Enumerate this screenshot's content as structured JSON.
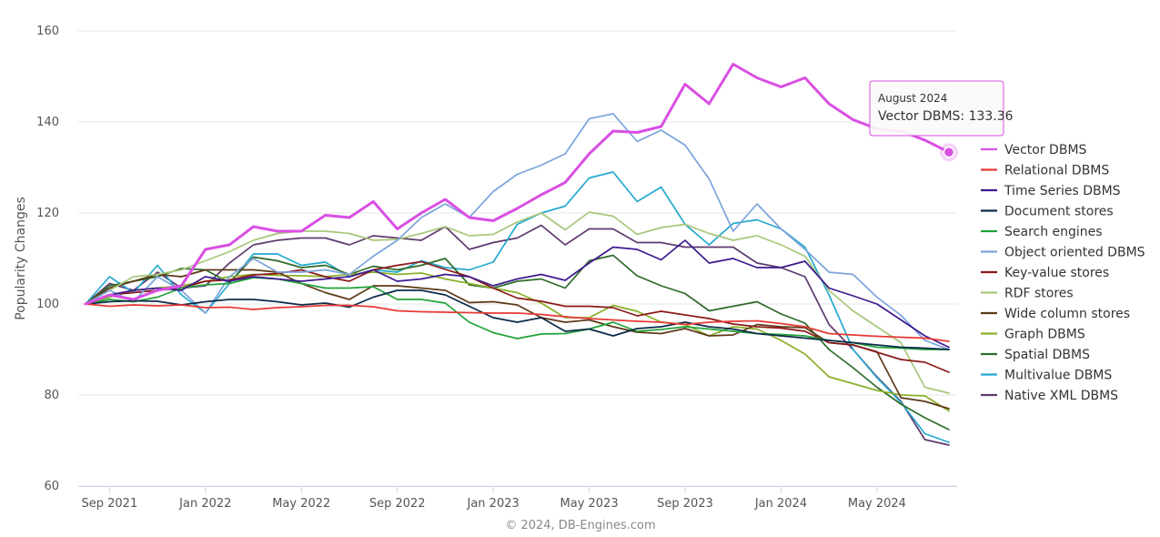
{
  "chart_data": {
    "type": "line",
    "title": "",
    "xlabel": "",
    "ylabel": "Popularity Changes",
    "ylim": [
      60,
      160
    ],
    "yticks": [
      60,
      80,
      100,
      120,
      140,
      160
    ],
    "x_start": "2021-08",
    "x_end": "2024-08",
    "xticks": [
      {
        "label": "Sep 2021",
        "date": "2021-09"
      },
      {
        "label": "Jan 2022",
        "date": "2022-01"
      },
      {
        "label": "May 2022",
        "date": "2022-05"
      },
      {
        "label": "Sep 2022",
        "date": "2022-09"
      },
      {
        "label": "Jan 2023",
        "date": "2023-01"
      },
      {
        "label": "May 2023",
        "date": "2023-05"
      },
      {
        "label": "Sep 2023",
        "date": "2023-09"
      },
      {
        "label": "Jan 2024",
        "date": "2024-01"
      },
      {
        "label": "May 2024",
        "date": "2024-05"
      }
    ],
    "grid": true,
    "legend_position": "right",
    "credits": "© 2024, DB-Engines.com",
    "tooltip": {
      "date": "August 2024",
      "series": "Vector DBMS",
      "value": "133.36",
      "value_text": "Vector DBMS: 133.36"
    },
    "series": [
      {
        "name": "Vector DBMS",
        "color": "#d94fe3",
        "width": 3,
        "values": [
          100,
          102,
          101,
          103,
          104,
          112,
          113,
          117,
          116,
          116,
          119.5,
          119,
          122.5,
          116.5,
          120,
          123,
          119,
          118.3,
          121,
          124,
          126.7,
          133,
          138,
          137.7,
          139,
          148.3,
          144,
          152.7,
          149.7,
          147.7,
          149.7,
          144,
          140.5,
          138.5,
          138,
          136,
          133.36
        ]
      },
      {
        "name": "Relational DBMS",
        "color": "#e53935",
        "width": 1.7,
        "values": [
          100,
          99.5,
          99.8,
          99.6,
          99.8,
          99.2,
          99.3,
          98.8,
          99.2,
          99.4,
          99.7,
          99.7,
          99.4,
          98.5,
          98.3,
          98.2,
          98.1,
          98,
          98,
          97.7,
          97.2,
          96.8,
          96.5,
          96.2,
          96,
          95.5,
          96,
          96.2,
          96.3,
          95.7,
          95,
          93.5,
          93.2,
          92.9,
          92.7,
          92.5,
          91.8
        ]
      },
      {
        "name": "Time Series DBMS",
        "color": "#3f1a8f",
        "width": 1.7,
        "values": [
          100,
          102,
          103,
          103.5,
          103,
          106,
          105,
          106,
          105.5,
          105,
          105.5,
          106,
          107.5,
          105,
          105.5,
          106.5,
          106,
          104,
          105.5,
          106.5,
          105.2,
          109,
          112.5,
          112,
          109.7,
          114,
          109,
          110,
          108,
          108,
          109.4,
          103.5,
          101.8,
          100,
          96.5,
          93,
          90.5
        ]
      },
      {
        "name": "Document stores",
        "color": "#0d2b4a",
        "width": 1.7,
        "values": [
          100,
          100.5,
          100.7,
          100.6,
          99.8,
          100.5,
          101,
          101,
          100.5,
          99.8,
          100.2,
          99.3,
          101.5,
          103,
          103,
          102,
          99.5,
          97,
          96,
          97,
          94,
          94.5,
          93,
          94.6,
          95,
          96,
          95,
          94.5,
          93.5,
          93,
          92.5,
          92,
          91.5,
          91,
          90.5,
          90.3,
          90
        ]
      },
      {
        "name": "Search engines",
        "color": "#21a33a",
        "width": 1.7,
        "values": [
          100,
          101,
          100.5,
          101.5,
          103.5,
          104.2,
          104.5,
          105.8,
          105.5,
          104.5,
          103.5,
          103.5,
          103.8,
          101,
          101,
          100.2,
          96,
          93.7,
          92.4,
          93.4,
          93.5,
          94.5,
          96,
          94,
          94.4,
          95,
          94.5,
          94,
          93.5,
          93.3,
          93,
          92,
          91.5,
          90.5,
          90.3,
          90,
          90
        ]
      },
      {
        "name": "Object oriented DBMS",
        "color": "#7ba4dc",
        "width": 1.7,
        "values": [
          100,
          103,
          100.5,
          106,
          103,
          98,
          106,
          110,
          107,
          107,
          107.5,
          106.5,
          110.5,
          114,
          119,
          122,
          119,
          124.7,
          128.5,
          130.5,
          133,
          140.7,
          141.8,
          135.7,
          138.2,
          134.9,
          127.5,
          116,
          122,
          116.5,
          112,
          107,
          106.5,
          101.5,
          97.5,
          92,
          90
        ]
      },
      {
        "name": "Key-value stores",
        "color": "#8b1a1a",
        "width": 1.7,
        "values": [
          100,
          102,
          102.5,
          103,
          103.5,
          105,
          105.3,
          106.4,
          106.7,
          107.5,
          106,
          105,
          107.5,
          108.5,
          109.3,
          107.6,
          106,
          103.5,
          101.3,
          100.6,
          99.5,
          99.5,
          99.2,
          97.4,
          98.4,
          97.6,
          96.8,
          95.6,
          95,
          94.7,
          94,
          91.5,
          91,
          89.4,
          87.8,
          87.2,
          85
        ]
      },
      {
        "name": "RDF stores",
        "color": "#a8c77a",
        "width": 1.7,
        "values": [
          100,
          103,
          106,
          106.5,
          107.5,
          109.5,
          111.5,
          114,
          115.5,
          116,
          116,
          115.5,
          114,
          114.2,
          115.5,
          117,
          115,
          115.3,
          118,
          120,
          116.3,
          120.2,
          119.3,
          115.3,
          116.8,
          117.5,
          115.5,
          114,
          115,
          113,
          110.5,
          103,
          98.5,
          95,
          91.5,
          81.7,
          80.4
        ]
      },
      {
        "name": "Wide column stores",
        "color": "#5d3a17",
        "width": 1.7,
        "values": [
          100,
          103.5,
          105,
          106.5,
          106,
          107.5,
          107.5,
          107.5,
          107,
          104.5,
          102.5,
          101,
          104,
          104,
          103.5,
          103,
          100.3,
          100.5,
          99.8,
          97,
          96,
          96.5,
          95,
          93.8,
          93.5,
          94.6,
          93,
          93.2,
          95.5,
          95,
          94.8,
          91.5,
          91,
          89.5,
          79.4,
          78.6,
          77
        ]
      },
      {
        "name": "Graph DBMS",
        "color": "#8ab02a",
        "width": 1.7,
        "values": [
          100,
          101.5,
          103,
          103.5,
          104,
          105,
          106,
          106.5,
          106.3,
          106.2,
          106,
          106.5,
          107,
          106.5,
          106.8,
          105.5,
          104.5,
          103.5,
          102.5,
          100.2,
          97,
          97,
          99.7,
          98.4,
          96,
          95.5,
          93,
          95,
          94.5,
          92,
          89,
          84,
          82.5,
          81,
          80,
          79.8,
          76.5
        ]
      },
      {
        "name": "Spatial DBMS",
        "color": "#2e6b2a",
        "width": 1.7,
        "values": [
          100,
          104,
          105,
          106,
          107.8,
          107.5,
          104.7,
          110.3,
          109.5,
          108,
          108.5,
          106.5,
          108.3,
          107.5,
          108.5,
          110,
          104.2,
          103.5,
          105,
          105.5,
          103.5,
          109.5,
          110.7,
          106.2,
          104,
          102.3,
          98.5,
          99.5,
          100.5,
          97.8,
          95.8,
          90,
          86,
          81.7,
          78,
          75,
          72.4
        ]
      },
      {
        "name": "Multivalue DBMS",
        "color": "#25a9cf",
        "width": 1.7,
        "values": [
          100,
          106,
          102.5,
          108.5,
          102,
          98,
          104.5,
          111,
          111,
          108.5,
          109.2,
          106,
          107.5,
          107,
          109.5,
          108,
          107.5,
          109.2,
          117.5,
          120,
          121.5,
          127.7,
          129,
          122.5,
          125.7,
          117.5,
          113,
          117.7,
          118.5,
          116.5,
          112.5,
          102,
          90,
          83.8,
          78.4,
          71.5,
          69.6
        ]
      },
      {
        "name": "Native XML DBMS",
        "color": "#5e3a6e",
        "width": 1.7,
        "values": [
          100,
          104.5,
          103,
          107,
          103.5,
          104,
          109,
          113,
          114,
          114.5,
          114.5,
          113,
          115,
          114.5,
          114,
          117,
          112,
          113.5,
          114.5,
          117.3,
          113,
          116.5,
          116.5,
          113.5,
          113.5,
          112.5,
          112.5,
          112.5,
          109,
          108,
          106,
          95.5,
          90,
          84,
          78.6,
          70.2,
          69
        ]
      }
    ]
  }
}
